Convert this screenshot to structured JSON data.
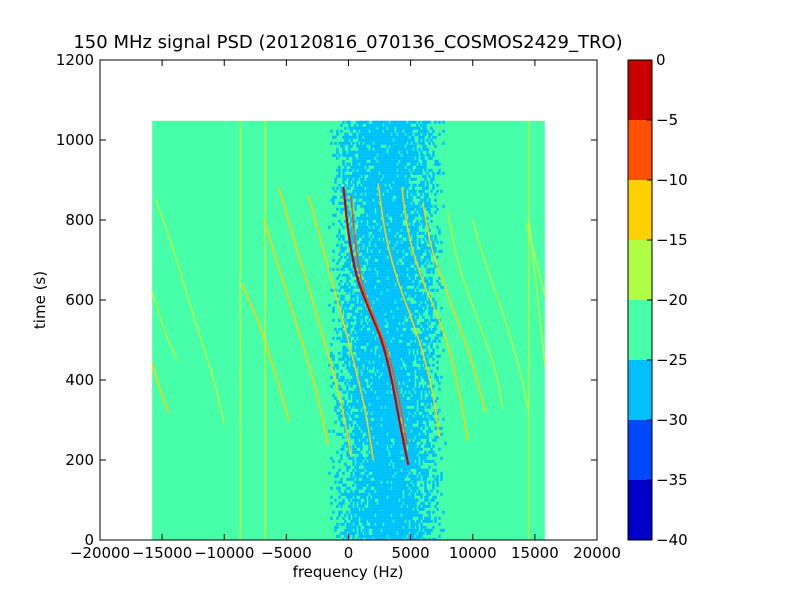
{
  "chart_data": {
    "type": "heatmap",
    "title": "150 MHz signal PSD (20120816_070136_COSMOS2429_TRO)",
    "xlabel": "frequency (Hz)",
    "ylabel": "time (s)",
    "xlim": [
      -20000,
      20000
    ],
    "ylim": [
      0,
      1200
    ],
    "xticks": [
      -20000,
      -15000,
      -10000,
      -5000,
      0,
      5000,
      10000,
      15000,
      20000
    ],
    "yticks": [
      0,
      200,
      400,
      600,
      800,
      1000,
      1200
    ],
    "data_extent": {
      "x": [
        -15800,
        15800
      ],
      "y": [
        0,
        1048
      ]
    },
    "background_level": "-25 to -20",
    "noise_band": {
      "center_x": 3000,
      "half_width_x": 3500,
      "level": "-30 to -25"
    },
    "colorbar": {
      "levels": [
        0,
        -5,
        -10,
        -15,
        -20,
        -25,
        -30,
        -35,
        -40
      ],
      "bins": [
        {
          "from": -5,
          "to": 0,
          "color": "#c80000"
        },
        {
          "from": -10,
          "to": -5,
          "color": "#ff5000"
        },
        {
          "from": -15,
          "to": -10,
          "color": "#ffd000"
        },
        {
          "from": -20,
          "to": -15,
          "color": "#b0ff46"
        },
        {
          "from": -25,
          "to": -20,
          "color": "#46ffa8"
        },
        {
          "from": -30,
          "to": -25,
          "color": "#00c0ff"
        },
        {
          "from": -35,
          "to": -30,
          "color": "#0048ff"
        },
        {
          "from": -40,
          "to": -35,
          "color": "#0000c8"
        }
      ]
    },
    "vertical_lines": [
      {
        "x": -8700,
        "y": [
          0,
          1048
        ],
        "color": "#b0ff46"
      },
      {
        "x": -6700,
        "y": [
          0,
          1048
        ],
        "color": "#b0ff46"
      },
      {
        "x": 14500,
        "y": [
          0,
          1048
        ],
        "color": "#b0ff46"
      }
    ],
    "traces": [
      {
        "name": "t1",
        "color": "#b0ff46",
        "points": [
          [
            -15800,
            620
          ],
          [
            -14800,
            520
          ],
          [
            -13800,
            450
          ]
        ]
      },
      {
        "name": "t2",
        "color": "#ffd000",
        "points": [
          [
            -15800,
            440
          ],
          [
            -15200,
            380
          ],
          [
            -14500,
            320
          ]
        ]
      },
      {
        "name": "t3",
        "color": "#b0ff46",
        "points": [
          [
            -15500,
            850
          ],
          [
            -14000,
            720
          ],
          [
            -12500,
            560
          ],
          [
            -10800,
            400
          ],
          [
            -10000,
            290
          ]
        ]
      },
      {
        "name": "t4",
        "color": "#ffd000",
        "points": [
          [
            -8600,
            640
          ],
          [
            -7400,
            560
          ],
          [
            -6000,
            430
          ],
          [
            -4800,
            300
          ]
        ]
      },
      {
        "name": "t5",
        "color": "#ffd000",
        "points": [
          [
            -6800,
            800
          ],
          [
            -5400,
            660
          ],
          [
            -4000,
            520
          ],
          [
            -2600,
            380
          ],
          [
            -1700,
            240
          ]
        ]
      },
      {
        "name": "t6",
        "color": "#ffd000",
        "points": [
          [
            -5600,
            880
          ],
          [
            -4300,
            740
          ],
          [
            -3000,
            610
          ],
          [
            -1800,
            480
          ],
          [
            -600,
            350
          ],
          [
            200,
            210
          ]
        ]
      },
      {
        "name": "t7",
        "color": "#ffd000",
        "points": [
          [
            -3200,
            860
          ],
          [
            -2000,
            720
          ],
          [
            -800,
            590
          ],
          [
            400,
            450
          ],
          [
            1400,
            320
          ],
          [
            2000,
            200
          ]
        ]
      },
      {
        "name": "t8-strong",
        "color": "#c80000",
        "points": [
          [
            -400,
            880
          ],
          [
            0,
            760
          ],
          [
            600,
            660
          ],
          [
            1600,
            580
          ],
          [
            2700,
            500
          ],
          [
            3500,
            400
          ],
          [
            4200,
            280
          ],
          [
            4800,
            190
          ]
        ]
      },
      {
        "name": "t8b",
        "color": "#ff5000",
        "points": [
          [
            200,
            860
          ],
          [
            600,
            720
          ],
          [
            1200,
            620
          ],
          [
            2300,
            540
          ],
          [
            3300,
            460
          ],
          [
            4100,
            350
          ],
          [
            4700,
            240
          ]
        ]
      },
      {
        "name": "t9",
        "color": "#ffd000",
        "points": [
          [
            2400,
            890
          ],
          [
            2900,
            770
          ],
          [
            3800,
            660
          ],
          [
            5000,
            560
          ],
          [
            6100,
            460
          ],
          [
            6900,
            350
          ],
          [
            7300,
            260
          ]
        ]
      },
      {
        "name": "t10",
        "color": "#ffd000",
        "points": [
          [
            4300,
            880
          ],
          [
            4800,
            760
          ],
          [
            5900,
            650
          ],
          [
            7200,
            560
          ],
          [
            8300,
            460
          ],
          [
            9100,
            340
          ],
          [
            9600,
            250
          ]
        ]
      },
      {
        "name": "t11",
        "color": "#ffd000",
        "points": [
          [
            6000,
            840
          ],
          [
            6700,
            720
          ],
          [
            7900,
            620
          ],
          [
            9100,
            520
          ],
          [
            10200,
            420
          ],
          [
            11000,
            320
          ]
        ]
      },
      {
        "name": "t12",
        "color": "#b0ff46",
        "points": [
          [
            8000,
            820
          ],
          [
            8700,
            700
          ],
          [
            9800,
            600
          ],
          [
            10900,
            510
          ],
          [
            11900,
            420
          ],
          [
            12400,
            330
          ]
        ]
      },
      {
        "name": "t13",
        "color": "#b0ff46",
        "points": [
          [
            10000,
            800
          ],
          [
            11000,
            690
          ],
          [
            12200,
            590
          ],
          [
            13200,
            490
          ],
          [
            14000,
            400
          ],
          [
            14400,
            330
          ]
        ]
      },
      {
        "name": "t14",
        "color": "#b0ff46",
        "points": [
          [
            14300,
            790
          ],
          [
            15100,
            700
          ],
          [
            15800,
            610
          ]
        ]
      },
      {
        "name": "t15",
        "color": "#b0ff46",
        "points": [
          [
            14500,
            810
          ],
          [
            15200,
            610
          ],
          [
            15800,
            440
          ]
        ]
      }
    ]
  }
}
